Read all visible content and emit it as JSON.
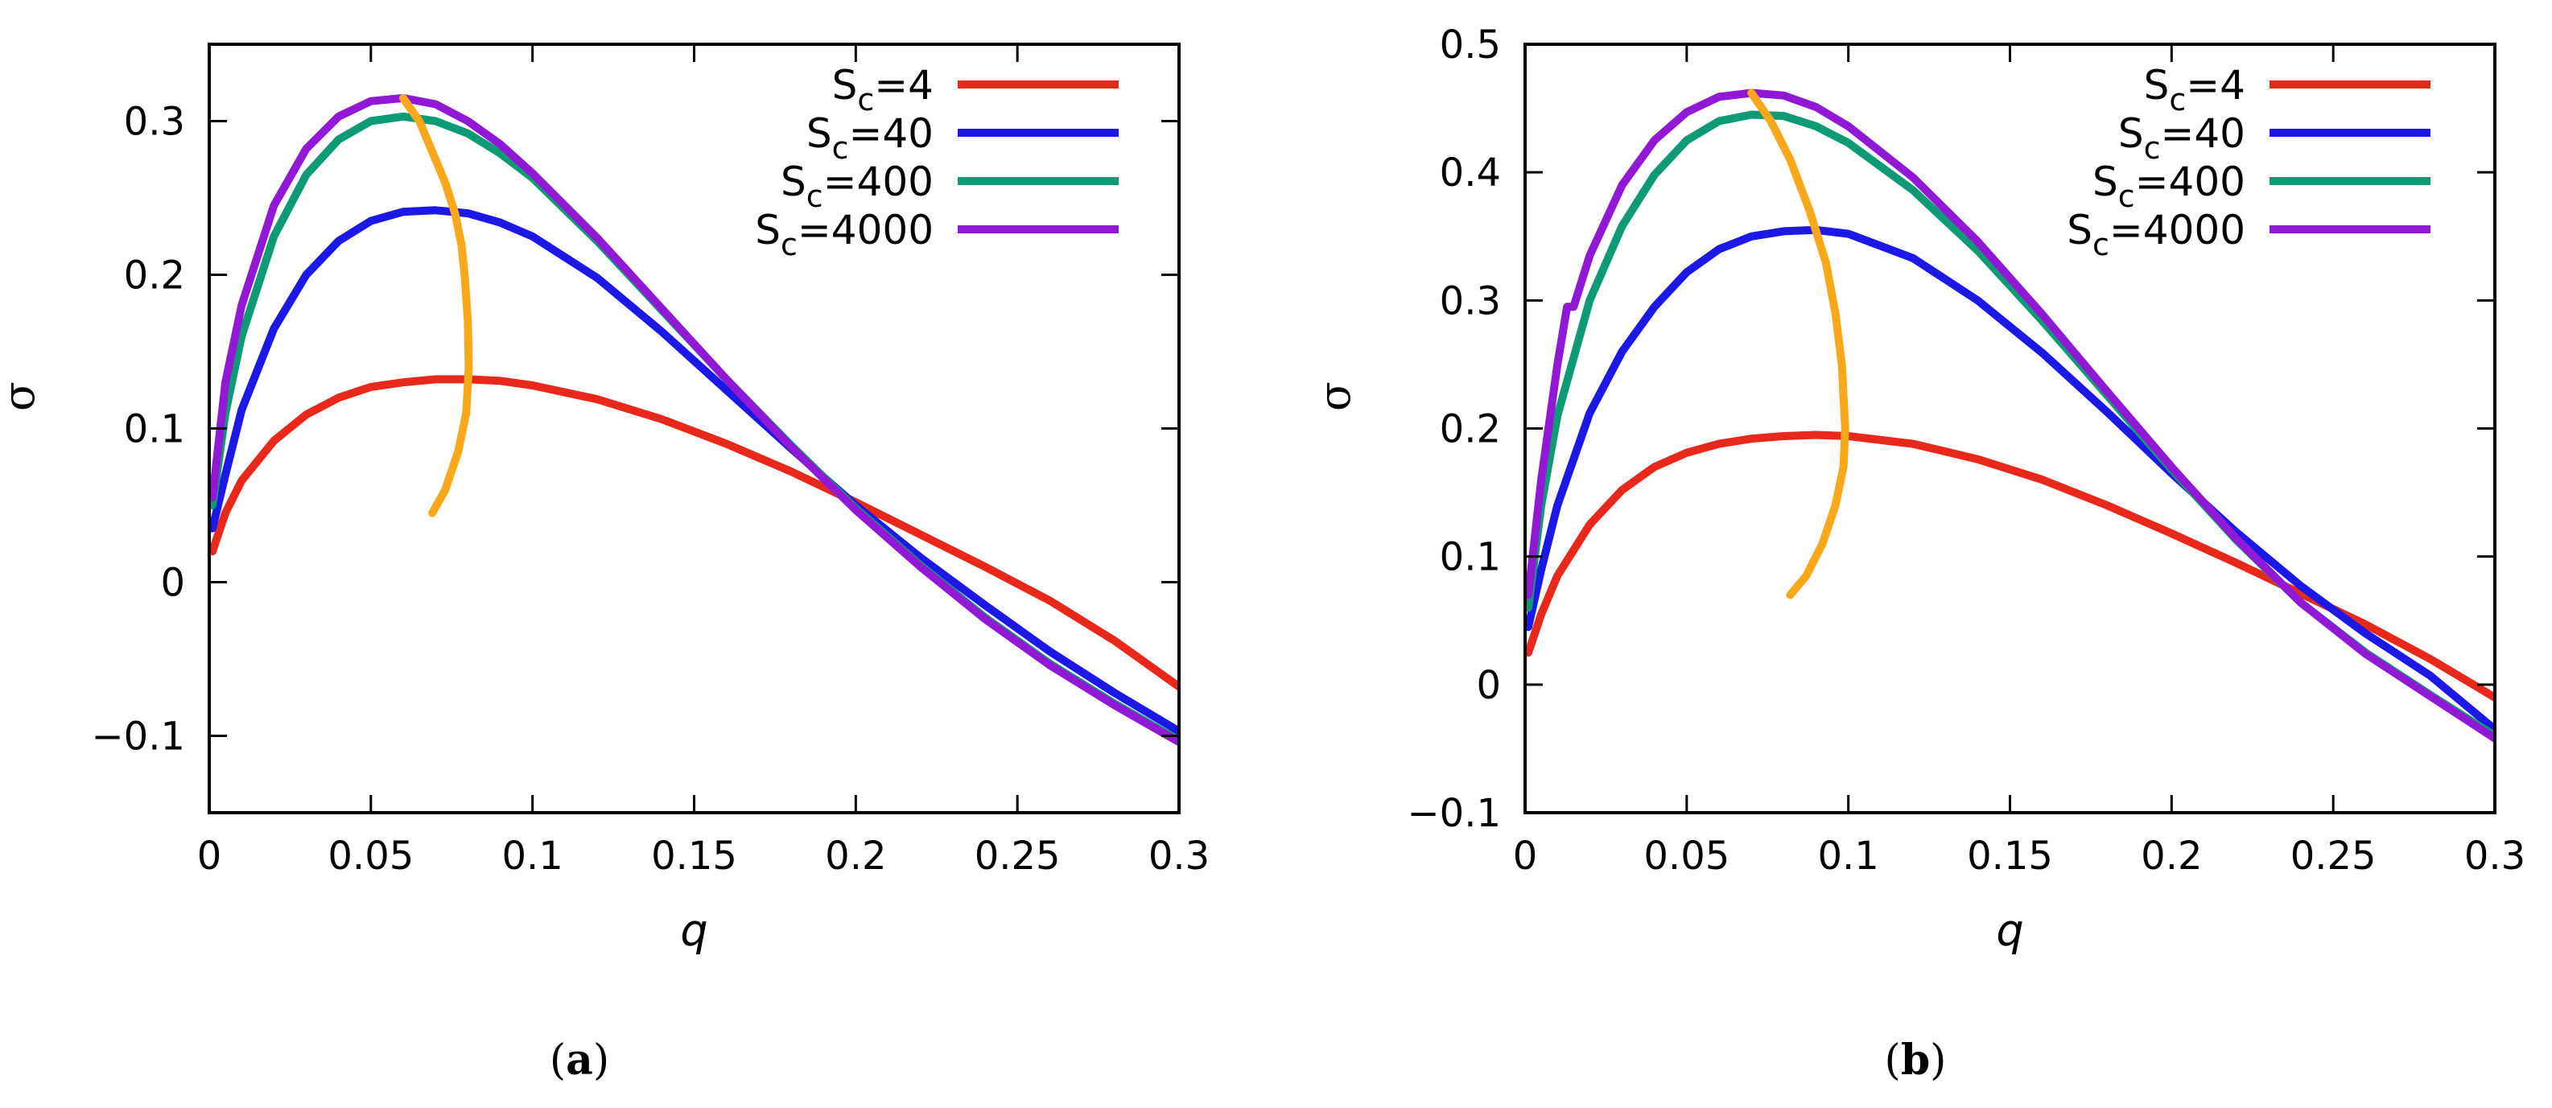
{
  "colors": {
    "Sc4": "#e8281a",
    "Sc40": "#1c19e6",
    "Sc400": "#0e9a74",
    "Sc4000": "#9119d6",
    "max_trace": "#f9a81c"
  },
  "chart_data": [
    {
      "type": "line",
      "panel_label": "a",
      "xlabel": "q",
      "ylabel": "σ",
      "xlim": [
        0,
        0.3
      ],
      "ylim": [
        -0.15,
        0.35
      ],
      "xticks": [
        0,
        0.05,
        0.1,
        0.15,
        0.2,
        0.25,
        0.3
      ],
      "xtick_labels": [
        "0",
        "0.05",
        "0.1",
        "0.15",
        "0.2",
        "0.25",
        "0.3"
      ],
      "yticks": [
        -0.1,
        0,
        0.1,
        0.2,
        0.3
      ],
      "ytick_labels": [
        "−0.1",
        "0",
        "0.1",
        "0.2",
        "0.3"
      ],
      "legend_position": "top-right",
      "series": [
        {
          "name": "Sc=4",
          "sub_base": "S",
          "sub": "c",
          "suffix": "=4",
          "color_key": "Sc4",
          "x": [
            0.001,
            0.005,
            0.01,
            0.02,
            0.03,
            0.04,
            0.05,
            0.06,
            0.07,
            0.08,
            0.09,
            0.1,
            0.12,
            0.14,
            0.16,
            0.18,
            0.2,
            0.22,
            0.24,
            0.26,
            0.28,
            0.3
          ],
          "y": [
            0.02,
            0.045,
            0.066,
            0.092,
            0.109,
            0.12,
            0.127,
            0.13,
            0.132,
            0.132,
            0.131,
            0.128,
            0.119,
            0.106,
            0.09,
            0.072,
            0.052,
            0.031,
            0.01,
            -0.012,
            -0.038,
            -0.068
          ]
        },
        {
          "name": "Sc=40",
          "sub_base": "S",
          "sub": "c",
          "suffix": "=40",
          "color_key": "Sc40",
          "x": [
            0.001,
            0.005,
            0.01,
            0.02,
            0.03,
            0.04,
            0.05,
            0.06,
            0.07,
            0.08,
            0.09,
            0.1,
            0.12,
            0.14,
            0.16,
            0.18,
            0.2,
            0.22,
            0.24,
            0.26,
            0.28,
            0.3
          ],
          "y": [
            0.035,
            0.07,
            0.112,
            0.165,
            0.2,
            0.222,
            0.235,
            0.241,
            0.242,
            0.24,
            0.234,
            0.225,
            0.198,
            0.163,
            0.125,
            0.087,
            0.05,
            0.016,
            -0.015,
            -0.045,
            -0.072,
            -0.097
          ]
        },
        {
          "name": "Sc=400",
          "sub_base": "S",
          "sub": "c",
          "suffix": "=400",
          "color_key": "Sc400",
          "x": [
            0.001,
            0.005,
            0.01,
            0.02,
            0.03,
            0.04,
            0.05,
            0.06,
            0.07,
            0.08,
            0.09,
            0.1,
            0.12,
            0.14,
            0.16,
            0.18,
            0.2,
            0.22,
            0.24,
            0.26,
            0.28,
            0.3
          ],
          "y": [
            0.05,
            0.11,
            0.16,
            0.225,
            0.265,
            0.288,
            0.3,
            0.303,
            0.3,
            0.292,
            0.279,
            0.263,
            0.222,
            0.177,
            0.132,
            0.089,
            0.048,
            0.011,
            -0.023,
            -0.053,
            -0.079,
            -0.103
          ]
        },
        {
          "name": "Sc=4000",
          "sub_base": "S",
          "sub": "c",
          "suffix": "=4000",
          "color_key": "Sc4000",
          "x": [
            0.001,
            0.005,
            0.01,
            0.02,
            0.03,
            0.04,
            0.05,
            0.06,
            0.07,
            0.08,
            0.09,
            0.1,
            0.12,
            0.14,
            0.16,
            0.18,
            0.2,
            0.22,
            0.24,
            0.26,
            0.28,
            0.3
          ],
          "y": [
            0.055,
            0.13,
            0.18,
            0.245,
            0.282,
            0.303,
            0.313,
            0.315,
            0.311,
            0.3,
            0.285,
            0.266,
            0.224,
            0.178,
            0.132,
            0.088,
            0.047,
            0.01,
            -0.024,
            -0.054,
            -0.08,
            -0.104
          ]
        },
        {
          "name": "maximum trace",
          "color_key": "max_trace",
          "legend": false,
          "x": [
            0.06,
            0.065,
            0.069,
            0.073,
            0.076,
            0.078,
            0.079,
            0.08,
            0.0803,
            0.0795,
            0.077,
            0.073,
            0.069
          ],
          "y": [
            0.315,
            0.3,
            0.28,
            0.26,
            0.24,
            0.22,
            0.2,
            0.17,
            0.14,
            0.11,
            0.085,
            0.06,
            0.045
          ]
        }
      ]
    },
    {
      "type": "line",
      "panel_label": "b",
      "xlabel": "q",
      "ylabel": "σ",
      "xlim": [
        0,
        0.3
      ],
      "ylim": [
        -0.1,
        0.5
      ],
      "xticks": [
        0,
        0.05,
        0.1,
        0.15,
        0.2,
        0.25,
        0.3
      ],
      "xtick_labels": [
        "0",
        "0.05",
        "0.1",
        "0.15",
        "0.2",
        "0.25",
        "0.3"
      ],
      "yticks": [
        -0.1,
        0,
        0.1,
        0.2,
        0.3,
        0.4,
        0.5
      ],
      "ytick_labels": [
        "−0.1",
        "0",
        "0.1",
        "0.2",
        "0.3",
        "0.4",
        "0.5"
      ],
      "legend_position": "top-right",
      "series": [
        {
          "name": "Sc=4",
          "sub_base": "S",
          "sub": "c",
          "suffix": "=4",
          "color_key": "Sc4",
          "x": [
            0.001,
            0.005,
            0.01,
            0.02,
            0.03,
            0.04,
            0.05,
            0.06,
            0.07,
            0.08,
            0.09,
            0.1,
            0.12,
            0.14,
            0.16,
            0.18,
            0.2,
            0.22,
            0.24,
            0.26,
            0.28,
            0.3
          ],
          "y": [
            0.025,
            0.055,
            0.085,
            0.125,
            0.152,
            0.17,
            0.181,
            0.188,
            0.192,
            0.194,
            0.195,
            0.194,
            0.188,
            0.176,
            0.16,
            0.14,
            0.118,
            0.095,
            0.071,
            0.047,
            0.02,
            -0.01
          ]
        },
        {
          "name": "Sc=40",
          "sub_base": "S",
          "sub": "c",
          "suffix": "=40",
          "color_key": "Sc40",
          "x": [
            0.001,
            0.005,
            0.01,
            0.02,
            0.03,
            0.04,
            0.05,
            0.06,
            0.07,
            0.08,
            0.09,
            0.1,
            0.12,
            0.14,
            0.16,
            0.18,
            0.2,
            0.22,
            0.24,
            0.26,
            0.28,
            0.3
          ],
          "y": [
            0.045,
            0.09,
            0.14,
            0.212,
            0.26,
            0.295,
            0.322,
            0.34,
            0.35,
            0.354,
            0.355,
            0.352,
            0.333,
            0.3,
            0.259,
            0.213,
            0.165,
            0.119,
            0.077,
            0.04,
            0.007,
            -0.035
          ]
        },
        {
          "name": "Sc=400",
          "sub_base": "S",
          "sub": "c",
          "suffix": "=400",
          "color_key": "Sc400",
          "x": [
            0.001,
            0.005,
            0.01,
            0.02,
            0.03,
            0.04,
            0.05,
            0.06,
            0.07,
            0.08,
            0.09,
            0.1,
            0.12,
            0.14,
            0.16,
            0.18,
            0.2,
            0.22,
            0.24,
            0.26,
            0.28,
            0.3
          ],
          "y": [
            0.06,
            0.14,
            0.21,
            0.3,
            0.358,
            0.398,
            0.425,
            0.44,
            0.445,
            0.444,
            0.436,
            0.423,
            0.386,
            0.339,
            0.284,
            0.226,
            0.168,
            0.113,
            0.064,
            0.025,
            -0.008,
            -0.04
          ]
        },
        {
          "name": "Sc=4000",
          "sub_base": "S",
          "sub": "c",
          "suffix": "=4000",
          "color_key": "Sc4000",
          "x": [
            0.001,
            0.005,
            0.01,
            0.013,
            0.015,
            0.02,
            0.03,
            0.04,
            0.05,
            0.06,
            0.07,
            0.08,
            0.09,
            0.1,
            0.12,
            0.14,
            0.16,
            0.18,
            0.2,
            0.22,
            0.24,
            0.26,
            0.28,
            0.3
          ],
          "y": [
            0.07,
            0.16,
            0.25,
            0.295,
            0.295,
            0.335,
            0.39,
            0.425,
            0.447,
            0.459,
            0.462,
            0.46,
            0.451,
            0.436,
            0.396,
            0.346,
            0.289,
            0.229,
            0.17,
            0.114,
            0.064,
            0.024,
            -0.009,
            -0.042
          ]
        },
        {
          "name": "maximum trace",
          "color_key": "max_trace",
          "legend": false,
          "x": [
            0.07,
            0.076,
            0.082,
            0.088,
            0.093,
            0.096,
            0.098,
            0.099,
            0.0985,
            0.096,
            0.092,
            0.087,
            0.082
          ],
          "y": [
            0.462,
            0.44,
            0.41,
            0.37,
            0.33,
            0.29,
            0.25,
            0.2,
            0.17,
            0.14,
            0.11,
            0.085,
            0.07
          ]
        }
      ]
    }
  ]
}
